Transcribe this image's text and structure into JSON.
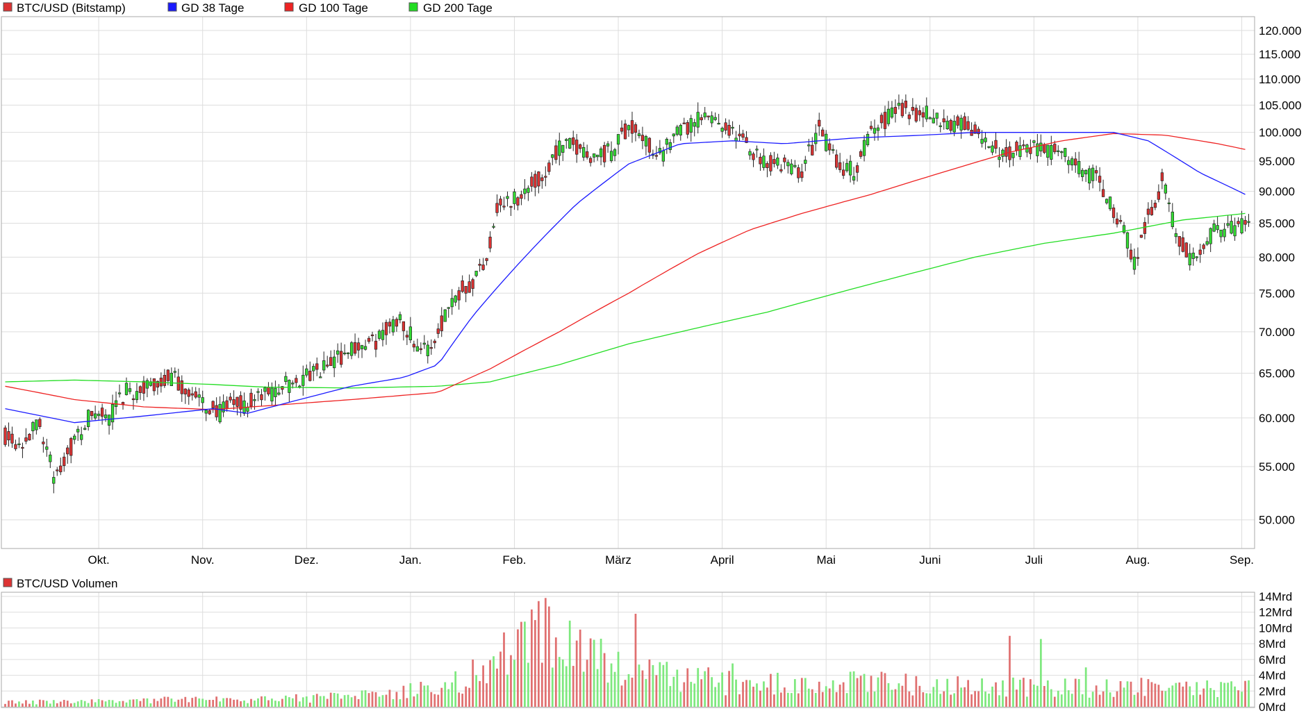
{
  "colors": {
    "up": "#33dd33",
    "down": "#dd3333",
    "ma38": "#1a1aff",
    "ma100": "#ee2222",
    "ma200": "#22dd22",
    "grid": "#dddddd",
    "frame": "#aaaaaa"
  },
  "legend": {
    "price": "BTC/USD (Bitstamp)",
    "ma38": "GD 38 Tage",
    "ma100": "GD 100 Tage",
    "ma200": "GD 200 Tage",
    "volume": "BTC/USD Volumen"
  },
  "chart_data": [
    {
      "type": "candlestick",
      "series_name": "BTC/USD (Bitstamp)",
      "x_labels": [
        "Okt.",
        "Nov.",
        "Dez.",
        "Jan.",
        "Feb.",
        "März",
        "April",
        "Mai",
        "Juni",
        "Juli",
        "Aug.",
        "Sep."
      ],
      "y_tick_labels": [
        "50.000",
        "55.000",
        "60.000",
        "65.000",
        "70.000",
        "75.000",
        "80.000",
        "85.000",
        "90.000",
        "95.000",
        "100.000",
        "105.000",
        "110.000",
        "115.000",
        "120.000"
      ],
      "y_scale": "log",
      "ylim": [
        47500,
        123000
      ],
      "grid": true,
      "trading_days": 360,
      "close_keypoints": [
        [
          0,
          58200
        ],
        [
          5,
          57500
        ],
        [
          10,
          59500
        ],
        [
          14,
          54000
        ],
        [
          20,
          57500
        ],
        [
          25,
          60500
        ],
        [
          30,
          60000
        ],
        [
          35,
          62800
        ],
        [
          40,
          63000
        ],
        [
          48,
          64500
        ],
        [
          55,
          62000
        ],
        [
          62,
          60500
        ],
        [
          66,
          61500
        ],
        [
          70,
          61500
        ],
        [
          75,
          62500
        ],
        [
          80,
          63500
        ],
        [
          90,
          65000
        ],
        [
          95,
          66500
        ],
        [
          100,
          68000
        ],
        [
          106,
          68500
        ],
        [
          110,
          70000
        ],
        [
          114,
          72000
        ],
        [
          118,
          69000
        ],
        [
          122,
          67500
        ],
        [
          125,
          70000
        ],
        [
          128,
          73500
        ],
        [
          132,
          76000
        ],
        [
          135,
          76500
        ],
        [
          139,
          80000
        ],
        [
          142,
          87500
        ],
        [
          146,
          88500
        ],
        [
          150,
          90000
        ],
        [
          155,
          92000
        ],
        [
          160,
          97500
        ],
        [
          165,
          97500
        ],
        [
          170,
          96000
        ],
        [
          175,
          96500
        ],
        [
          180,
          101500
        ],
        [
          185,
          98000
        ],
        [
          190,
          96500
        ],
        [
          195,
          100000
        ],
        [
          200,
          102000
        ],
        [
          205,
          103000
        ],
        [
          210,
          100000
        ],
        [
          215,
          97000
        ],
        [
          220,
          95000
        ],
        [
          225,
          94000
        ],
        [
          230,
          93500
        ],
        [
          235,
          100500
        ],
        [
          240,
          95000
        ],
        [
          245,
          93000
        ],
        [
          250,
          100000
        ],
        [
          258,
          104500
        ],
        [
          265,
          103500
        ],
        [
          272,
          102000
        ],
        [
          278,
          101000
        ],
        [
          283,
          98000
        ],
        [
          288,
          96500
        ],
        [
          295,
          97500
        ],
        [
          300,
          97000
        ],
        [
          305,
          96500
        ],
        [
          310,
          94000
        ],
        [
          315,
          92000
        ],
        [
          320,
          86500
        ],
        [
          323,
          84000
        ],
        [
          326,
          79500
        ],
        [
          330,
          86000
        ],
        [
          334,
          91500
        ],
        [
          338,
          84000
        ],
        [
          342,
          80000
        ],
        [
          346,
          82000
        ],
        [
          350,
          84500
        ],
        [
          355,
          84000
        ],
        [
          360,
          85000
        ]
      ],
      "ma38_keypoints": [
        [
          0,
          61000
        ],
        [
          20,
          59500
        ],
        [
          40,
          60200
        ],
        [
          60,
          61000
        ],
        [
          70,
          60500
        ],
        [
          85,
          62000
        ],
        [
          100,
          63500
        ],
        [
          115,
          64500
        ],
        [
          125,
          66000
        ],
        [
          135,
          72000
        ],
        [
          150,
          80000
        ],
        [
          165,
          88000
        ],
        [
          180,
          94500
        ],
        [
          195,
          98000
        ],
        [
          210,
          98500
        ],
        [
          225,
          98000
        ],
        [
          245,
          99000
        ],
        [
          265,
          99500
        ],
        [
          280,
          100000
        ],
        [
          292,
          100000
        ],
        [
          305,
          100000
        ],
        [
          320,
          100000
        ],
        [
          330,
          98500
        ],
        [
          345,
          93000
        ],
        [
          358,
          89500
        ]
      ],
      "ma100_keypoints": [
        [
          0,
          63500
        ],
        [
          20,
          62000
        ],
        [
          40,
          61200
        ],
        [
          60,
          60900
        ],
        [
          75,
          61300
        ],
        [
          100,
          62000
        ],
        [
          125,
          62800
        ],
        [
          140,
          65500
        ],
        [
          160,
          70000
        ],
        [
          180,
          75000
        ],
        [
          200,
          80500
        ],
        [
          215,
          84000
        ],
        [
          230,
          86500
        ],
        [
          250,
          89500
        ],
        [
          270,
          93000
        ],
        [
          290,
          96500
        ],
        [
          305,
          98500
        ],
        [
          320,
          99800
        ],
        [
          335,
          99500
        ],
        [
          350,
          98000
        ],
        [
          358,
          97000
        ]
      ],
      "ma200_keypoints": [
        [
          0,
          64000
        ],
        [
          20,
          64200
        ],
        [
          40,
          64000
        ],
        [
          60,
          63700
        ],
        [
          75,
          63400
        ],
        [
          100,
          63300
        ],
        [
          125,
          63500
        ],
        [
          140,
          64000
        ],
        [
          160,
          66000
        ],
        [
          180,
          68500
        ],
        [
          200,
          70500
        ],
        [
          220,
          72500
        ],
        [
          240,
          75000
        ],
        [
          260,
          77500
        ],
        [
          280,
          80000
        ],
        [
          300,
          82000
        ],
        [
          320,
          83500
        ],
        [
          340,
          85500
        ],
        [
          358,
          86500
        ]
      ]
    },
    {
      "type": "bar",
      "series_name": "BTC/USD Volumen",
      "y_tick_labels": [
        "0Mrd",
        "2Mrd",
        "4Mrd",
        "6Mrd",
        "8Mrd",
        "10Mrd",
        "12Mrd",
        "14Mrd"
      ],
      "ylim": [
        0,
        14
      ],
      "unit": "Mrd",
      "volume_keypoints": [
        [
          0,
          0.6
        ],
        [
          30,
          0.7
        ],
        [
          45,
          1.0
        ],
        [
          60,
          0.9
        ],
        [
          75,
          1.0
        ],
        [
          90,
          1.2
        ],
        [
          105,
          1.5
        ],
        [
          120,
          2.2
        ],
        [
          132,
          3.5
        ],
        [
          140,
          5.5
        ],
        [
          148,
          8.0
        ],
        [
          155,
          9.5
        ],
        [
          162,
          8.5
        ],
        [
          170,
          6.5
        ],
        [
          180,
          4.5
        ],
        [
          190,
          4.0
        ],
        [
          200,
          3.5
        ],
        [
          215,
          3.0
        ],
        [
          228,
          3.2
        ],
        [
          240,
          3.0
        ],
        [
          250,
          3.2
        ],
        [
          260,
          3.0
        ],
        [
          272,
          2.8
        ],
        [
          285,
          2.7
        ],
        [
          300,
          2.6
        ],
        [
          315,
          2.5
        ],
        [
          330,
          2.6
        ],
        [
          345,
          2.5
        ],
        [
          358,
          2.4
        ]
      ],
      "volume_spikes": [
        [
          130,
          4.5
        ],
        [
          143,
          7.0
        ],
        [
          150,
          10.8
        ],
        [
          153,
          11.0
        ],
        [
          156,
          13.8
        ],
        [
          159,
          8.8
        ],
        [
          161,
          6.0
        ],
        [
          170,
          8.5
        ],
        [
          175,
          5.5
        ],
        [
          182,
          11.8
        ],
        [
          186,
          6.0
        ],
        [
          203,
          5.0
        ],
        [
          210,
          5.5
        ],
        [
          245,
          4.5
        ],
        [
          260,
          4.2
        ],
        [
          290,
          9.0
        ],
        [
          299,
          8.6
        ],
        [
          312,
          5.0
        ]
      ]
    }
  ]
}
